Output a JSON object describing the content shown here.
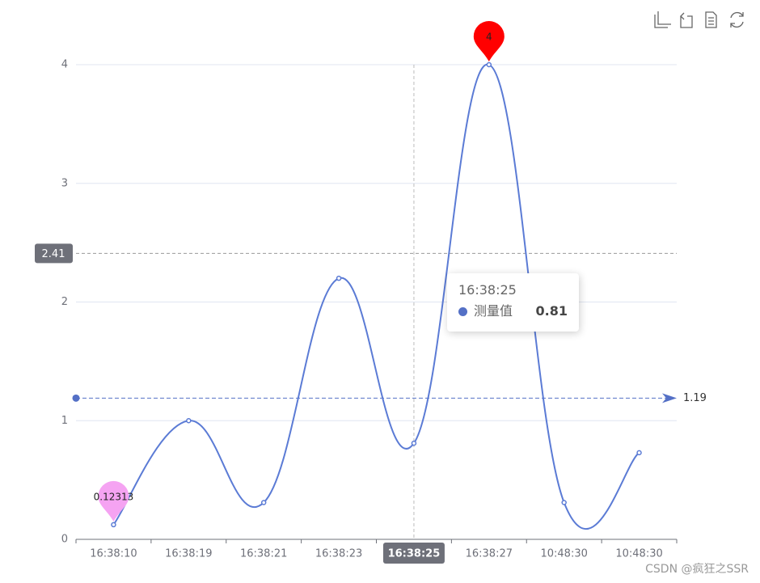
{
  "chart_data": {
    "type": "line",
    "categories": [
      "16:38:10",
      "16:38:19",
      "16:38:21",
      "16:38:23",
      "16:38:25",
      "16:38:27",
      "10:48:30",
      "10:48:30"
    ],
    "series": [
      {
        "name": "测量值",
        "color": "#5b7bd5",
        "values": [
          0.12313,
          1,
          0.31,
          2.2,
          0.81,
          4,
          0.31,
          0.73
        ]
      }
    ],
    "ylim": [
      0,
      4
    ],
    "yticks": [
      0,
      1,
      2,
      3,
      4
    ],
    "grid": true,
    "max_marker_color": "#ff0000",
    "min_marker_color": "#f5a3f2",
    "average_line": 1.19,
    "axis_pointer_y": {
      "value": 2.41,
      "label": "2.41"
    },
    "watermark": "CSDN @疯狂之SSR"
  }
}
